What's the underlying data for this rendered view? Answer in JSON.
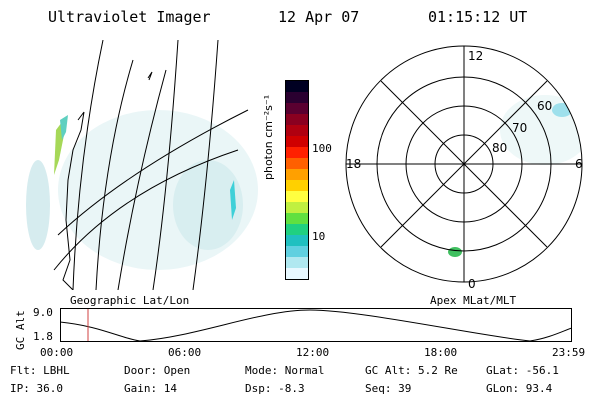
{
  "header": {
    "title": "Ultraviolet Imager",
    "date": "12 Apr 07",
    "time": "01:15:12 UT"
  },
  "left_panel": {
    "label": "Geographic Lat/Lon"
  },
  "colorbar": {
    "unit_label": "photon cm⁻²s⁻¹",
    "ticks": [
      "100",
      "10"
    ],
    "colors": [
      "#000022",
      "#2a0030",
      "#5a0030",
      "#8a0020",
      "#b00010",
      "#d00000",
      "#ff2000",
      "#ff6000",
      "#ffa000",
      "#ffd000",
      "#ffff40",
      "#c0f040",
      "#60e040",
      "#20d080",
      "#20c0c0",
      "#60d0e0",
      "#b0e8f0",
      "#e8f8ff"
    ]
  },
  "polar_panel": {
    "label": "Apex MLat/MLT",
    "mlt_labels": [
      "12",
      "18",
      "6",
      "0"
    ],
    "lat_labels": [
      "60",
      "70",
      "80"
    ]
  },
  "alt_plot": {
    "ylabel": "GC Alt",
    "yticks": [
      "9.0",
      "1.8"
    ],
    "xticks": [
      "00:00",
      "06:00",
      "12:00",
      "18:00",
      "23:59"
    ],
    "current_time_marker": "01:15"
  },
  "info": {
    "flt": "Flt: LBHL",
    "door": "Door: Open",
    "mode": "Mode: Normal",
    "gc_alt": "GC Alt: 5.2 Re",
    "glat": "GLat: -56.1",
    "ip": "IP: 36.0",
    "gain": "Gain: 14",
    "dsp": "Dsp:    -8.3",
    "seq": "Seq: 39",
    "glon": "GLon:  93.4"
  }
}
